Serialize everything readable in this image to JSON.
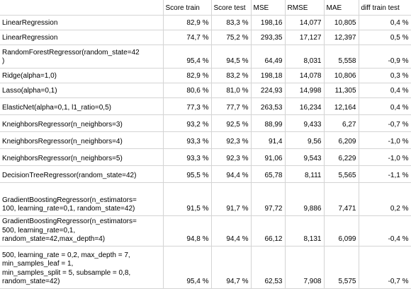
{
  "columns": [
    "",
    "Score train",
    "Score test",
    "MSE",
    "RMSE",
    "MAE",
    "diff train test"
  ],
  "rows": [
    {
      "model": "LinearRegression",
      "values": [
        "82,9 %",
        "83,3 %",
        "198,16",
        "14,077",
        "10,805",
        "0,4 %"
      ]
    },
    {
      "model": "LinearRegression",
      "values": [
        "74,7 %",
        "75,2 %",
        "293,35",
        "17,127",
        "12,397",
        "0,5 %"
      ]
    },
    {
      "model": "RandomForestRegressor(random_state=42\n)",
      "values": [
        "95,4 %",
        "94,5 %",
        "64,49",
        "8,031",
        "5,558",
        "-0,9 %"
      ]
    },
    {
      "model": "Ridge(alpha=1,0)",
      "values": [
        "82,9 %",
        "83,2 %",
        "198,18",
        "14,078",
        "10,806",
        "0,3 %"
      ]
    },
    {
      "model": "Lasso(alpha=0,1)",
      "values": [
        "80,6 %",
        "81,0 %",
        "224,93",
        "14,998",
        "11,305",
        "0,4 %"
      ]
    },
    {
      "model": "ElasticNet(alpha=0,1, l1_ratio=0,5)",
      "values": [
        "77,3 %",
        "77,7 %",
        "263,53",
        "16,234",
        "12,164",
        "0,4 %"
      ]
    },
    {
      "model": "KneighborsRegressor(n_neighbors=3)",
      "values": [
        "93,2 %",
        "92,5 %",
        "88,99",
        "9,433",
        "6,27",
        "-0,7 %"
      ]
    },
    {
      "model": "KneighborsRegressor(n_neighbors=4)",
      "values": [
        "93,3 %",
        "92,3 %",
        "91,4",
        "9,56",
        "6,209",
        "-1,0 %"
      ]
    },
    {
      "model": "KneighborsRegressor(n_neighbors=5)",
      "values": [
        "93,3 %",
        "92,3 %",
        "91,06",
        "9,543",
        "6,229",
        "-1,0 %"
      ]
    },
    {
      "model": " DecisionTreeRegressor(random_state=42)",
      "values": [
        "95,5 %",
        "94,4 %",
        "65,78",
        "8,111",
        "5,565",
        "-1,1 %"
      ]
    },
    {
      "model": "GradientBoostingRegressor(n_estimators=\n100, learning_rate=0,1, random_state=42)",
      "values": [
        "91,5 %",
        "91,7 %",
        "97,72",
        "9,886",
        "7,471",
        "0,2 %"
      ]
    },
    {
      "model": "GradientBoostingRegressor(n_estimators=\n500, learning_rate=0,1,\nrandom_state=42,max_depth=4)",
      "values": [
        "94,8 %",
        "94,4 %",
        "66,12",
        "8,131",
        "6,099",
        "-0,4 %"
      ]
    },
    {
      "model": "500, learning_rate = 0,2,  max_depth = 7,\nmin_samples_leaf =  1,\nmin_samples_split =  5, subsample = 0,8,\nrandom_state=42)",
      "values": [
        "95,4 %",
        "94,7 %",
        "62,53",
        "7,908",
        "5,575",
        "-0,7 %"
      ]
    }
  ]
}
